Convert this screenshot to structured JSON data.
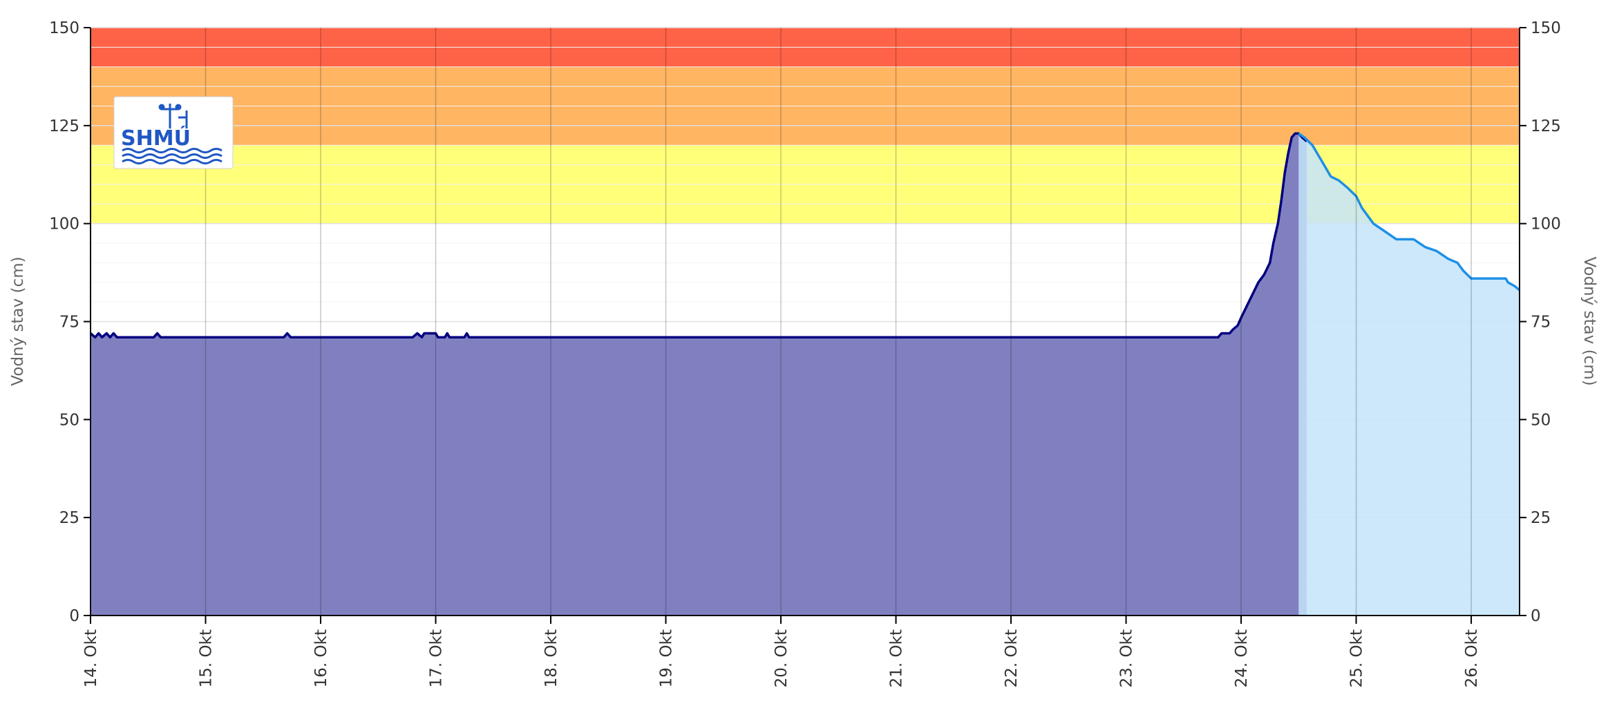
{
  "chart_data": {
    "type": "area",
    "ylabel_left": "Vodný stav (cm)",
    "ylabel_right": "Vodný stav (cm)",
    "ylim": [
      0,
      150
    ],
    "y_ticks": [
      0,
      25,
      50,
      75,
      100,
      125,
      150
    ],
    "x_ticks": [
      "14. Okt",
      "15. Okt",
      "16. Okt",
      "17. Okt",
      "18. Okt",
      "19. Okt",
      "20. Okt",
      "21. Okt",
      "22. Okt",
      "23. Okt",
      "24. Okt",
      "25. Okt",
      "26. Okt"
    ],
    "x_range_days": [
      0,
      12.42
    ],
    "grid": true,
    "logo_text": "SHMÚ",
    "bands": [
      {
        "from": 100,
        "to": 120,
        "color": "#ffff7a"
      },
      {
        "from": 120,
        "to": 140,
        "color": "#ffb562"
      },
      {
        "from": 140,
        "to": 150,
        "color": "#ff6347"
      }
    ],
    "series": [
      {
        "color": "#000080",
        "fill": "#8080c0",
        "points": [
          [
            0.0,
            72
          ],
          [
            0.04,
            71
          ],
          [
            0.07,
            72
          ],
          [
            0.1,
            71
          ],
          [
            0.14,
            72
          ],
          [
            0.17,
            71
          ],
          [
            0.2,
            72
          ],
          [
            0.23,
            71
          ],
          [
            0.55,
            71
          ],
          [
            0.58,
            72
          ],
          [
            0.61,
            71
          ],
          [
            1.68,
            71
          ],
          [
            1.71,
            72
          ],
          [
            1.74,
            71
          ],
          [
            2.8,
            71
          ],
          [
            2.84,
            72
          ],
          [
            2.88,
            71
          ],
          [
            2.9,
            72
          ],
          [
            3.0,
            72
          ],
          [
            3.02,
            71
          ],
          [
            3.08,
            71
          ],
          [
            3.1,
            72
          ],
          [
            3.12,
            71
          ],
          [
            3.25,
            71
          ],
          [
            3.27,
            72
          ],
          [
            3.29,
            71
          ],
          [
            9.8,
            71
          ],
          [
            9.83,
            72
          ],
          [
            9.9,
            72
          ],
          [
            9.93,
            73
          ],
          [
            9.97,
            74
          ],
          [
            10.0,
            76
          ],
          [
            10.05,
            79
          ],
          [
            10.1,
            82
          ],
          [
            10.15,
            85
          ],
          [
            10.2,
            87
          ],
          [
            10.25,
            90
          ],
          [
            10.28,
            95
          ],
          [
            10.32,
            100
          ],
          [
            10.35,
            106
          ],
          [
            10.38,
            113
          ],
          [
            10.41,
            118
          ],
          [
            10.44,
            122
          ],
          [
            10.47,
            123
          ],
          [
            10.5,
            123
          ],
          [
            10.53,
            122
          ],
          [
            10.57,
            121
          ]
        ]
      },
      {
        "color": "#1e90e6",
        "fill": "#c4e4fa",
        "points": [
          [
            10.5,
            123
          ],
          [
            10.55,
            122
          ],
          [
            10.62,
            120
          ],
          [
            10.7,
            116
          ],
          [
            10.78,
            112
          ],
          [
            10.85,
            111
          ],
          [
            10.93,
            109
          ],
          [
            11.0,
            107
          ],
          [
            11.05,
            104
          ],
          [
            11.1,
            102
          ],
          [
            11.15,
            100
          ],
          [
            11.25,
            98
          ],
          [
            11.35,
            96
          ],
          [
            11.5,
            96
          ],
          [
            11.6,
            94
          ],
          [
            11.7,
            93
          ],
          [
            11.8,
            91
          ],
          [
            11.88,
            90
          ],
          [
            11.93,
            88
          ],
          [
            12.0,
            86
          ],
          [
            12.3,
            86
          ],
          [
            12.32,
            85
          ],
          [
            12.38,
            84
          ],
          [
            12.42,
            83
          ]
        ]
      }
    ]
  }
}
